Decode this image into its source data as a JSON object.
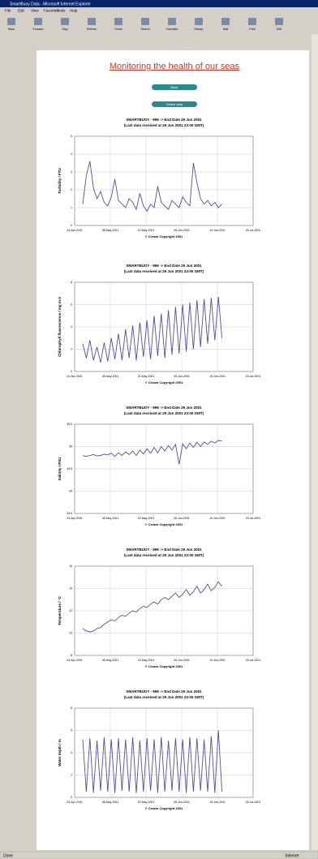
{
  "window": {
    "title": "SmartBuoy Data - Microsoft Internet Explorer",
    "menu": [
      "File",
      "Edit",
      "View",
      "Favorites",
      "Tools",
      "Help"
    ],
    "toolbar": [
      "Back",
      "Forward",
      "Stop",
      "Refresh",
      "Home",
      "Search",
      "Favorites",
      "History",
      "Mail",
      "Print",
      "Edit"
    ],
    "status": "Done",
    "zone": "Internet"
  },
  "page": {
    "title": "Monitoring the health of our seas",
    "buttons": [
      "Back",
      "Select data"
    ]
  },
  "charts": [
    {
      "title": [
        "SMARTBUOY - 999 -> End Date 29 Jun 2001",
        "(Last data received at 29 Jun 2001 23:00 GMT)"
      ],
      "ylabel": "Turbidity / FTU",
      "credit": "© Crown Copyright 2001",
      "color": "#5b4a9a",
      "xticks": [
        "24-Apr-2001",
        "08-May-2001",
        "22-May-2001",
        "05-Jun-2001",
        "19-Jun-2001",
        "03-Jul-2001"
      ],
      "ylim": [
        0,
        5
      ],
      "yticks": [
        0,
        1,
        2,
        3,
        4,
        5
      ],
      "values": [
        1.2,
        2.8,
        3.6,
        2.1,
        1.5,
        1.9,
        1.3,
        1.1,
        1.6,
        2.6,
        1.4,
        1.2,
        1.0,
        1.5,
        1.3,
        0.9,
        1.8,
        1.1,
        0.8,
        1.2,
        1.0,
        2.2,
        1.3,
        1.1,
        0.9,
        1.4,
        1.2,
        1.0,
        1.6,
        1.3,
        1.1,
        3.5,
        2.4,
        1.5,
        1.2,
        1.4,
        1.1,
        1.3,
        1.0,
        1.2
      ]
    },
    {
      "title": [
        "SMARTBUOY - 999 -> End Date 29 Jun 2001",
        "(Last data received at 29 Jun 2001 23:00 GMT)"
      ],
      "ylabel": "Chlorophyll fluorescence / mg m-3",
      "credit": "© Crown Copyright 2001",
      "color": "#5b4a9a",
      "xticks": [
        "24-Apr-2001",
        "08-May-2001",
        "22-May-2001",
        "05-Jun-2001",
        "19-Jun-2001",
        "03-Jul-2001"
      ],
      "ylim": [
        0,
        8
      ],
      "yticks": [
        0,
        2,
        4,
        6,
        8
      ],
      "values": [
        2.5,
        1.2,
        2.8,
        1.0,
        2.2,
        0.8,
        2.6,
        0.9,
        3.0,
        1.1,
        3.4,
        1.0,
        3.8,
        1.2,
        4.1,
        1.0,
        4.4,
        1.3,
        4.6,
        1.1,
        5.0,
        1.4,
        5.2,
        1.2,
        5.5,
        1.5,
        5.8,
        1.6,
        6.0,
        1.8,
        6.2,
        2.0,
        6.4,
        2.2,
        6.5,
        2.5,
        6.6,
        2.8,
        6.7,
        3.0
      ]
    },
    {
      "title": [
        "SMARTBUOY - 999 -> End Date 29 Jun 2001",
        "(Last data received at 29 Jun 2001 23:00 GMT)"
      ],
      "ylabel": "Salinity / PSU",
      "credit": "© Crown Copyright 2001",
      "color": "#5b4a9a",
      "xticks": [
        "24-Apr-2001",
        "08-May-2001",
        "22-May-2001",
        "05-Jun-2001",
        "19-Jun-2001",
        "03-Jul-2001"
      ],
      "ylim": [
        33.5,
        35.5
      ],
      "yticks": [
        33.5,
        34,
        34.5,
        35,
        35.5
      ],
      "values": [
        34.8,
        34.78,
        34.8,
        34.82,
        34.79,
        34.8,
        34.83,
        34.81,
        34.85,
        34.78,
        34.86,
        34.8,
        34.88,
        34.82,
        34.9,
        34.8,
        34.92,
        34.83,
        34.95,
        34.85,
        34.98,
        34.86,
        35.0,
        34.9,
        35.02,
        34.92,
        35.05,
        34.6,
        35.06,
        34.95,
        35.08,
        34.98,
        35.1,
        35.0,
        35.1,
        35.05,
        35.12,
        35.08,
        35.14,
        35.12
      ]
    },
    {
      "title": [
        "SMARTBUOY - 999 -> End Date 29 Jun 2001",
        "(Last data received at 29 Jun 2001 23:00 GMT)"
      ],
      "ylabel": "Temperature / °C",
      "credit": "© Crown Copyright 2001",
      "color": "#5b4a9a",
      "xticks": [
        "24-Apr-2001",
        "08-May-2001",
        "22-May-2001",
        "05-Jun-2001",
        "19-Jun-2001",
        "03-Jul-2001"
      ],
      "ylim": [
        8,
        16
      ],
      "yticks": [
        8,
        10,
        12,
        14,
        16
      ],
      "values": [
        10.4,
        10.2,
        10.1,
        10.2,
        10.4,
        10.5,
        10.8,
        11.0,
        11.2,
        11.1,
        11.4,
        11.6,
        11.5,
        11.8,
        12.0,
        11.9,
        12.2,
        12.4,
        12.3,
        12.6,
        12.8,
        12.6,
        13.0,
        13.2,
        13.0,
        13.3,
        13.6,
        13.2,
        13.5,
        13.9,
        13.4,
        13.7,
        14.2,
        13.6,
        13.9,
        14.4,
        13.8,
        14.1,
        14.6,
        14.2
      ]
    },
    {
      "title": [
        "SMARTBUOY - 999 -> End Date 29 Jun 2001",
        "(Last data received at 29 Jun 2001 23:00 GMT)"
      ],
      "ylabel": "Water depth / m",
      "credit": "© Crown Copyright 2001",
      "color": "#5b4a9a",
      "xticks": [
        "24-Apr-2001",
        "08-May-2001",
        "22-May-2001",
        "05-Jun-2001",
        "19-Jun-2001",
        "03-Jul-2001"
      ],
      "ylim": [
        0,
        8
      ],
      "yticks": [
        0,
        2,
        4,
        6,
        8
      ],
      "values": [
        5.2,
        0.5,
        5.3,
        0.4,
        5.1,
        0.6,
        5.4,
        0.5,
        5.2,
        0.4,
        5.3,
        0.6,
        5.2,
        0.5,
        5.4,
        0.4,
        5.1,
        0.5,
        5.3,
        0.6,
        5.2,
        0.4,
        5.4,
        0.5,
        5.1,
        0.6,
        5.3,
        0.5,
        5.2,
        0.4,
        5.4,
        0.5,
        5.3,
        0.6,
        5.2,
        0.5,
        5.5,
        0.4,
        6.0,
        0.5
      ]
    }
  ]
}
